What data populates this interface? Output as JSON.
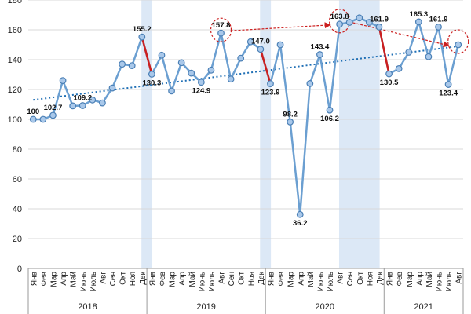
{
  "chart_data": {
    "type": "line",
    "title": "",
    "xlabel": "",
    "ylabel": "",
    "ylim": [
      0,
      180
    ],
    "yticks": [
      0,
      20,
      40,
      60,
      80,
      100,
      120,
      140,
      160,
      180
    ],
    "grid": "horizontal",
    "years": [
      {
        "label": "2018",
        "start": 0,
        "end": 11
      },
      {
        "label": "2019",
        "start": 12,
        "end": 23
      },
      {
        "label": "2020",
        "start": 24,
        "end": 35
      },
      {
        "label": "2021",
        "start": 36,
        "end": 43
      }
    ],
    "categories": [
      "Янв",
      "Фев",
      "Мар",
      "Апр",
      "Май",
      "Июнь",
      "Июль",
      "Авг",
      "Сен",
      "Окт",
      "Ноя",
      "Дек",
      "Янв",
      "Фев",
      "Мар",
      "Апр",
      "Май",
      "Июнь",
      "Июль",
      "Авг",
      "Сен",
      "Окт",
      "Ноя",
      "Дек",
      "Янв",
      "Фев",
      "Мар",
      "Апр",
      "Май",
      "Июнь",
      "Июль",
      "Авг",
      "Сен",
      "Окт",
      "Ноя",
      "Дек",
      "Янв",
      "Фев",
      "Мар",
      "Апр",
      "Май",
      "Июнь",
      "Июль",
      "Авг"
    ],
    "series": [
      {
        "color": "#6b9fd1",
        "values": [
          100,
          100,
          102.7,
          126,
          109,
          109.2,
          113,
          111,
          121,
          137,
          136,
          155.2,
          130.3,
          143,
          119,
          138,
          131,
          124.9,
          133,
          157.8,
          127,
          141,
          152,
          147.0,
          123.9,
          150,
          98.2,
          36.2,
          124,
          143.4,
          106.2,
          163.8,
          165,
          168,
          165,
          161.9,
          130.5,
          134,
          145,
          165.3,
          142,
          161.9,
          123.4,
          150
        ]
      }
    ],
    "data_labels": [
      {
        "index": 0,
        "text": "100"
      },
      {
        "index": 2,
        "text": "102.7"
      },
      {
        "index": 5,
        "text": "109.2"
      },
      {
        "index": 11,
        "text": "155.2"
      },
      {
        "index": 12,
        "text": "130.3"
      },
      {
        "index": 17,
        "text": "124.9"
      },
      {
        "index": 19,
        "text": "157.8"
      },
      {
        "index": 23,
        "text": "147.0"
      },
      {
        "index": 24,
        "text": "123.9"
      },
      {
        "index": 26,
        "text": "98.2"
      },
      {
        "index": 27,
        "text": "36.2"
      },
      {
        "index": 29,
        "text": "143.4"
      },
      {
        "index": 30,
        "text": "106.2"
      },
      {
        "index": 31,
        "text": "163.8"
      },
      {
        "index": 35,
        "text": "161.9"
      },
      {
        "index": 36,
        "text": "130.5"
      },
      {
        "index": 39,
        "text": "165.3"
      },
      {
        "index": 41,
        "text": "161.9"
      },
      {
        "index": 42,
        "text": "123.4"
      }
    ],
    "shaded_ranges": [
      [
        11,
        12
      ],
      [
        23,
        24
      ],
      [
        31,
        35
      ]
    ],
    "trendline": {
      "from": [
        0,
        113
      ],
      "to": [
        43,
        149
      ],
      "color": "#1f6fb5"
    },
    "red_segments": [
      [
        11,
        12
      ],
      [
        23,
        24
      ],
      [
        35,
        36
      ]
    ],
    "circled_points": [
      19,
      31,
      43
    ],
    "peak_arrows": [
      [
        19,
        31
      ],
      [
        31,
        43
      ]
    ],
    "colors": {
      "line": "#6b9fd1",
      "marker_fill": "#a9c8ea",
      "marker_stroke": "#4a7fb5",
      "shade": "#dce8f6",
      "red": "#cc1f1f",
      "grid": "#d9d9d9"
    }
  }
}
